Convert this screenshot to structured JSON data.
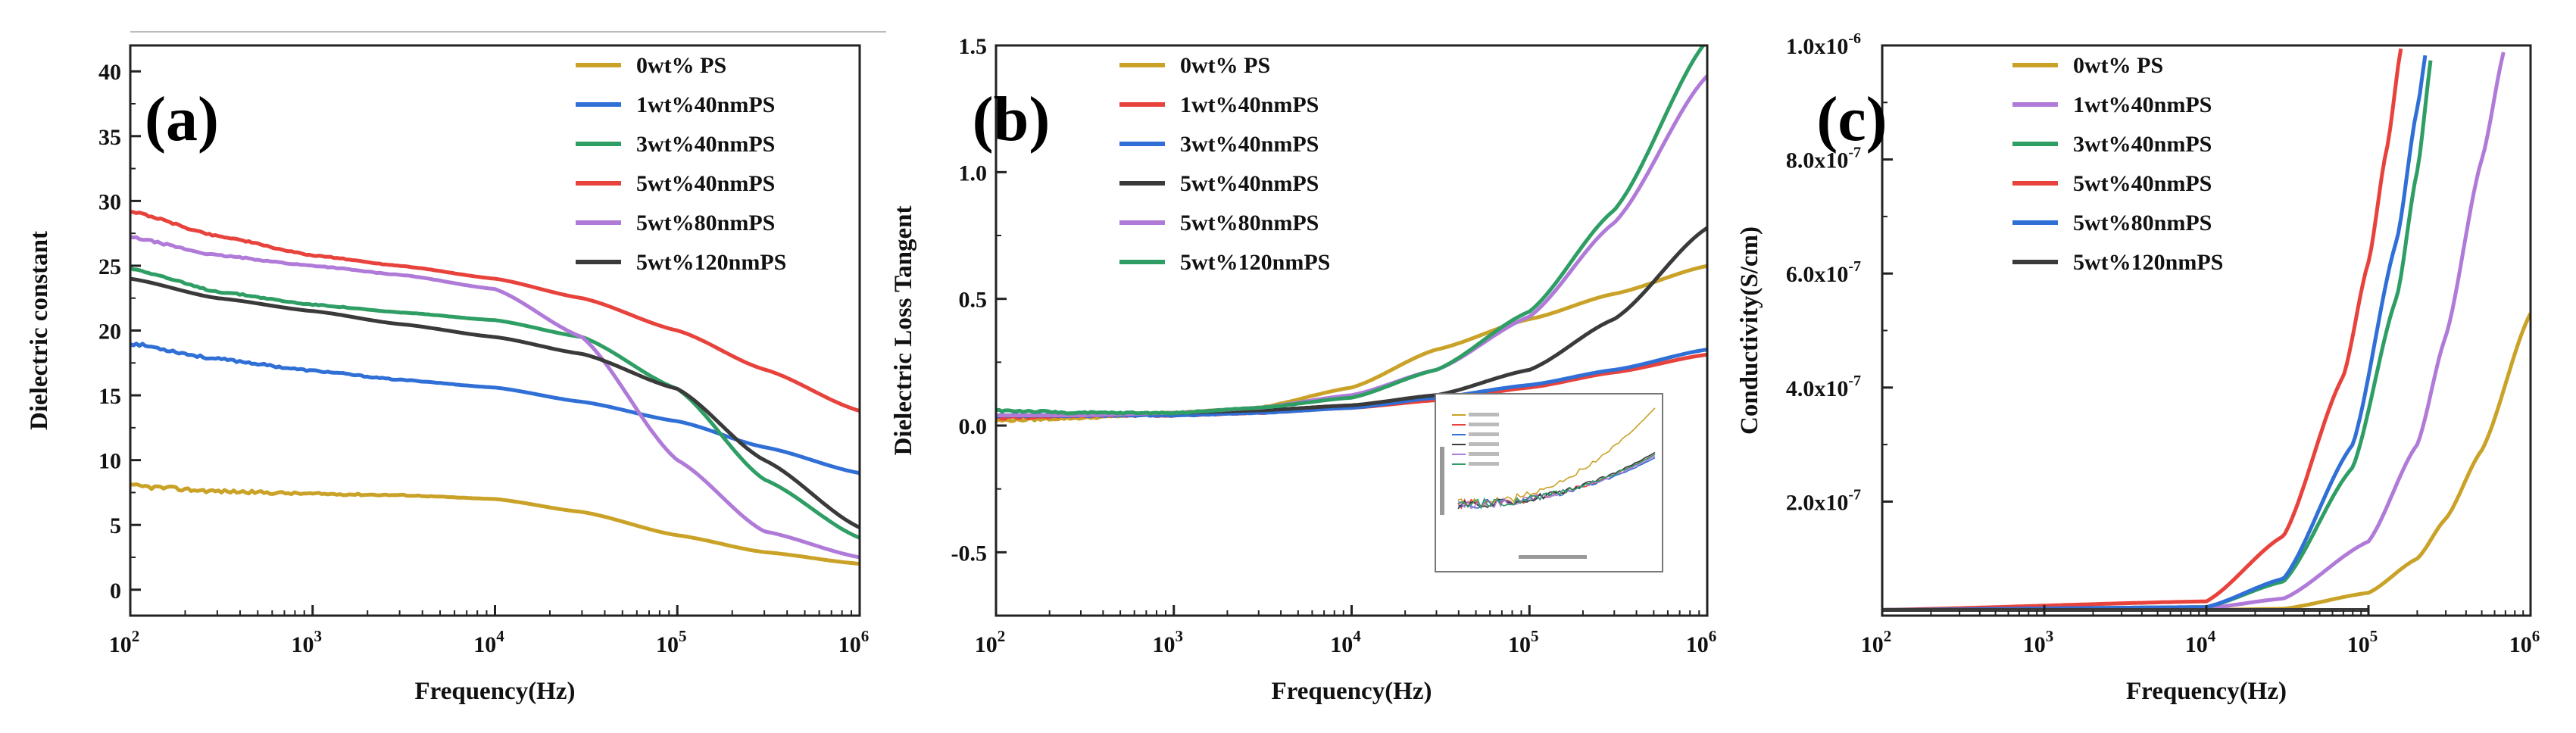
{
  "figure": {
    "panels": [
      {
        "id": "a",
        "panel_label": "(a)",
        "type": "line",
        "xlabel": "Frequency(Hz)",
        "ylabel": "Dielectric constant",
        "x_scale": "log",
        "xlim": [
          100,
          1000000
        ],
        "ylim": [
          -2,
          42
        ],
        "x_ticks": [
          {
            "value": 100,
            "base": "10",
            "exp": "2"
          },
          {
            "value": 1000,
            "base": "10",
            "exp": "3"
          },
          {
            "value": 10000,
            "base": "10",
            "exp": "4"
          },
          {
            "value": 100000,
            "base": "10",
            "exp": "5"
          },
          {
            "value": 1000000,
            "base": "10",
            "exp": "6"
          }
        ],
        "y_ticks": [
          {
            "value": 0,
            "label": "0"
          },
          {
            "value": 5,
            "label": "5"
          },
          {
            "value": 10,
            "label": "10"
          },
          {
            "value": 15,
            "label": "15"
          },
          {
            "value": 20,
            "label": "20"
          },
          {
            "value": 25,
            "label": "25"
          },
          {
            "value": 30,
            "label": "30"
          },
          {
            "value": 35,
            "label": "35"
          },
          {
            "value": 40,
            "label": "40"
          }
        ],
        "legend_position": "top-right",
        "series": [
          {
            "name": "0wt% PS",
            "color": "#c9a227",
            "noise": 0.35,
            "x": [
              100,
              300,
              1000,
              3000,
              10000,
              30000,
              100000,
              300000,
              1000000
            ],
            "y": [
              8.0,
              7.6,
              7.4,
              7.3,
              7.0,
              6.0,
              4.2,
              2.9,
              2.0
            ]
          },
          {
            "name": "1wt%40nmPS",
            "color": "#2f6fd6",
            "noise": 0.25,
            "x": [
              100,
              300,
              1000,
              3000,
              10000,
              30000,
              100000,
              300000,
              1000000
            ],
            "y": [
              19.0,
              17.8,
              16.9,
              16.2,
              15.6,
              14.5,
              13.0,
              11.0,
              9.0
            ]
          },
          {
            "name": "3wt%40nmPS",
            "color": "#2e9e64",
            "noise": 0.15,
            "x": [
              100,
              300,
              1000,
              3000,
              10000,
              30000,
              100000,
              300000,
              1000000
            ],
            "y": [
              24.8,
              23.0,
              22.0,
              21.4,
              20.8,
              19.5,
              15.5,
              8.5,
              4.0
            ]
          },
          {
            "name": "5wt%40nmPS",
            "color": "#e8423c",
            "noise": 0.15,
            "x": [
              100,
              300,
              1000,
              3000,
              10000,
              30000,
              100000,
              300000,
              1000000
            ],
            "y": [
              29.2,
              27.3,
              25.8,
              25.0,
              24.0,
              22.5,
              20.0,
              17.0,
              13.8
            ]
          },
          {
            "name": "5wt%80nmPS",
            "color": "#b07ad8",
            "noise": 0.15,
            "x": [
              100,
              300,
              1000,
              3000,
              10000,
              30000,
              100000,
              300000,
              1000000
            ],
            "y": [
              27.2,
              25.8,
              25.0,
              24.3,
              23.2,
              19.5,
              10.0,
              4.5,
              2.5
            ]
          },
          {
            "name": "5wt%120nmPS",
            "color": "#3a3a3a",
            "noise": 0.0,
            "x": [
              100,
              300,
              1000,
              3000,
              10000,
              30000,
              100000,
              300000,
              1000000
            ],
            "y": [
              24.0,
              22.5,
              21.5,
              20.5,
              19.5,
              18.2,
              15.5,
              10.0,
              4.8
            ]
          }
        ]
      },
      {
        "id": "b",
        "panel_label": "(b)",
        "type": "line",
        "xlabel": "Frequency(Hz)",
        "ylabel": "Dielectric Loss Tangent",
        "x_scale": "log",
        "xlim": [
          100,
          1000000
        ],
        "ylim": [
          -0.75,
          1.5
        ],
        "x_ticks": [
          {
            "value": 100,
            "base": "10",
            "exp": "2"
          },
          {
            "value": 1000,
            "base": "10",
            "exp": "3"
          },
          {
            "value": 10000,
            "base": "10",
            "exp": "4"
          },
          {
            "value": 100000,
            "base": "10",
            "exp": "5"
          },
          {
            "value": 1000000,
            "base": "10",
            "exp": "6"
          }
        ],
        "y_ticks": [
          {
            "value": -0.5,
            "label": "-0.5"
          },
          {
            "value": 0.0,
            "label": "0.0"
          },
          {
            "value": 0.5,
            "label": "0.5"
          },
          {
            "value": 1.0,
            "label": "1.0"
          },
          {
            "value": 1.5,
            "label": "1.5"
          }
        ],
        "legend_position": "top-left",
        "inset": "zoomed view of low-frequency loss tangent curves",
        "series": [
          {
            "name": "0wt% PS",
            "color": "#c9a227",
            "noise": 0.01,
            "x": [
              100,
              300,
              1000,
              3000,
              10000,
              30000,
              100000,
              300000,
              1000000
            ],
            "y": [
              0.02,
              0.03,
              0.05,
              0.07,
              0.15,
              0.3,
              0.42,
              0.52,
              0.63
            ]
          },
          {
            "name": "1wt%40nmPS",
            "color": "#e8423c",
            "noise": 0.01,
            "x": [
              100,
              300,
              1000,
              3000,
              10000,
              30000,
              100000,
              300000,
              1000000
            ],
            "y": [
              0.03,
              0.04,
              0.04,
              0.05,
              0.07,
              0.1,
              0.15,
              0.21,
              0.28
            ]
          },
          {
            "name": "3wt%40nmPS",
            "color": "#2f6fd6",
            "noise": 0.01,
            "x": [
              100,
              300,
              1000,
              3000,
              10000,
              30000,
              100000,
              300000,
              1000000
            ],
            "y": [
              0.04,
              0.04,
              0.04,
              0.05,
              0.07,
              0.11,
              0.16,
              0.22,
              0.3
            ]
          },
          {
            "name": "5wt%40nmPS",
            "color": "#3a3a3a",
            "noise": 0.0,
            "x": [
              100,
              300,
              1000,
              3000,
              10000,
              30000,
              100000,
              300000,
              1000000
            ],
            "y": [
              0.04,
              0.04,
              0.05,
              0.06,
              0.08,
              0.12,
              0.22,
              0.42,
              0.78
            ]
          },
          {
            "name": "5wt%80nmPS",
            "color": "#b07ad8",
            "noise": 0.0,
            "x": [
              100,
              300,
              1000,
              3000,
              10000,
              30000,
              100000,
              300000,
              1000000
            ],
            "y": [
              0.04,
              0.04,
              0.05,
              0.07,
              0.12,
              0.22,
              0.43,
              0.8,
              1.38
            ]
          },
          {
            "name": "5wt%120nmPS",
            "color": "#2e9e64",
            "noise": 0.01,
            "x": [
              100,
              300,
              1000,
              3000,
              10000,
              30000,
              100000,
              300000,
              1000000
            ],
            "y": [
              0.06,
              0.05,
              0.05,
              0.07,
              0.11,
              0.22,
              0.45,
              0.85,
              1.52
            ]
          }
        ]
      },
      {
        "id": "c",
        "panel_label": "(c)",
        "type": "line",
        "xlabel": "Frequency(Hz)",
        "ylabel": "Conductivity(S/cm)",
        "x_scale": "log",
        "xlim": [
          100,
          1000000
        ],
        "ylim": [
          0,
          1e-06
        ],
        "x_ticks": [
          {
            "value": 100,
            "base": "10",
            "exp": "2"
          },
          {
            "value": 1000,
            "base": "10",
            "exp": "3"
          },
          {
            "value": 10000,
            "base": "10",
            "exp": "4"
          },
          {
            "value": 100000,
            "base": "10",
            "exp": "5"
          },
          {
            "value": 1000000,
            "base": "10",
            "exp": "6"
          }
        ],
        "y_ticks": [
          {
            "value": 2e-07,
            "base": "2.0x10",
            "exp": "-7"
          },
          {
            "value": 4e-07,
            "base": "4.0x10",
            "exp": "-7"
          },
          {
            "value": 6e-07,
            "base": "6.0x10",
            "exp": "-7"
          },
          {
            "value": 8e-07,
            "base": "8.0x10",
            "exp": "-7"
          },
          {
            "value": 1e-06,
            "base": "1.0x10",
            "exp": "-6"
          }
        ],
        "legend_position": "top-left",
        "series": [
          {
            "name": "0wt% PS",
            "color": "#c9a227",
            "noise": 0.0,
            "x": [
              100,
              10000,
              30000,
              100000,
              200000,
              300000,
              500000,
              1000000
            ],
            "y": [
              1e-08,
              1e-08,
              1.2e-08,
              4e-08,
              1e-07,
              1.7e-07,
              2.9e-07,
              5.3e-07
            ]
          },
          {
            "name": "1wt%40nmPS",
            "color": "#b07ad8",
            "noise": 0.0,
            "x": [
              100,
              10000,
              30000,
              100000,
              200000,
              300000,
              500000,
              700000
            ],
            "y": [
              1e-08,
              1.3e-08,
              3e-08,
              1.3e-07,
              3e-07,
              4.9e-07,
              8e-07,
              1e-06
            ]
          },
          {
            "name": "3wt%40nmPS",
            "color": "#2e9e64",
            "noise": 0.0,
            "x": [
              100,
              10000,
              30000,
              80000,
              150000,
              200000,
              250000
            ],
            "y": [
              1e-08,
              1.5e-08,
              6e-08,
              2.6e-07,
              5.6e-07,
              7.8e-07,
              1e-06
            ]
          },
          {
            "name": "5wt%40nmPS",
            "color": "#e8423c",
            "noise": 0.0,
            "x": [
              100,
              10000,
              30000,
              70000,
              100000,
              130000,
              160000
            ],
            "y": [
              1e-08,
              2.5e-08,
              1.4e-07,
              4.2e-07,
              6.2e-07,
              8.2e-07,
              1e-06
            ]
          },
          {
            "name": "5wt%80nmPS",
            "color": "#2f6fd6",
            "noise": 0.0,
            "x": [
              100,
              10000,
              30000,
              80000,
              150000,
              200000,
              230000
            ],
            "y": [
              1e-08,
              1.5e-08,
              6.5e-08,
              3e-07,
              6.6e-07,
              8.9e-07,
              1e-06
            ]
          },
          {
            "name": "5wt%120nmPS",
            "color": "#3a3a3a",
            "noise": 0.0,
            "x": [
              100,
              10000,
              30000,
              100000
            ],
            "y": [
              1e-08,
              1e-08,
              1e-08,
              1e-08
            ]
          }
        ]
      }
    ]
  }
}
